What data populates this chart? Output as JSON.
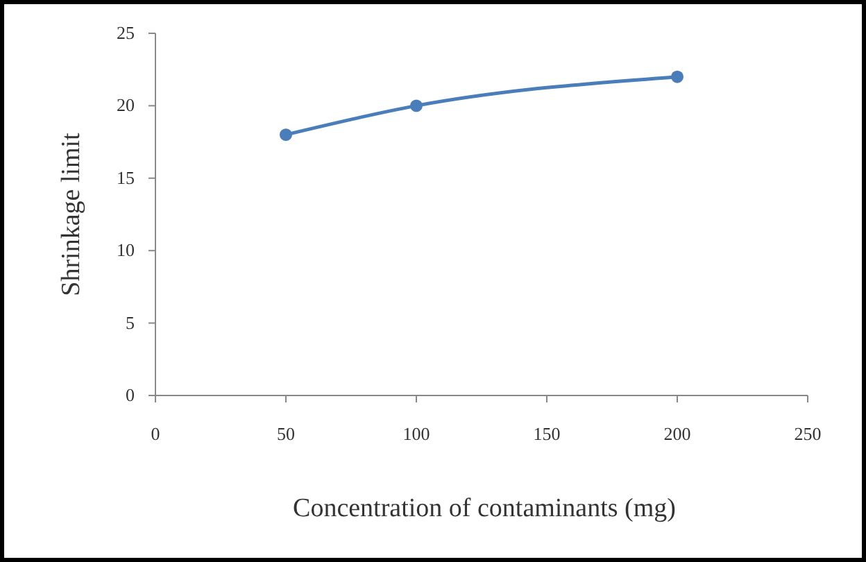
{
  "chart_data": {
    "type": "line",
    "xlabel": "Concentration of contaminants (mg)",
    "ylabel": "Shrinkage limit",
    "x": [
      50,
      100,
      200
    ],
    "series": [
      {
        "color": "#4a7ebb",
        "values": [
          18,
          20,
          22
        ]
      }
    ],
    "xlim": [
      0,
      250
    ],
    "xticks": [
      0,
      50,
      100,
      150,
      200,
      250
    ],
    "ylim": [
      0,
      25
    ],
    "yticks": [
      0,
      5,
      10,
      15,
      20,
      25
    ],
    "grid": false,
    "marker": "circle",
    "line_style": "solid"
  }
}
